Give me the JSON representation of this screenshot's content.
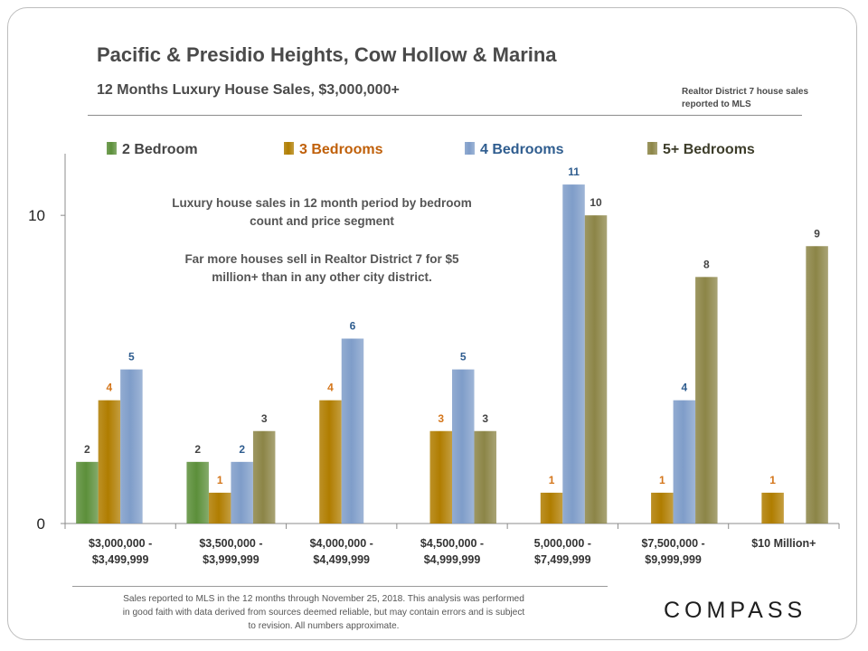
{
  "header": {
    "title": "Pacific & Presidio Heights, Cow Hollow & Marina",
    "subtitle": "12 Months  Luxury House Sales, $3,000,000+",
    "source_note": "Realtor District 7 house sales reported to MLS"
  },
  "annotation": {
    "line1": "Luxury house sales in 12 month period by bedroom",
    "line2": "count and price segment",
    "line3": "Far more houses sell in Realtor District 7 for $5",
    "line4": "million+ than in any other city district."
  },
  "footer": {
    "line1": "Sales reported to MLS in the 12 months through November 25, 2018. This analysis was performed",
    "line2": "in good faith with data derived from sources deemed reliable, but may contain errors and is subject",
    "line3": "to revision. All numbers approximate."
  },
  "logo": "COMPASS",
  "chart_data": {
    "type": "bar",
    "title": "Pacific & Presidio Heights, Cow Hollow & Marina",
    "xlabel": "",
    "ylabel": "",
    "ylim": [
      0,
      12
    ],
    "yticks": [
      "0",
      "10"
    ],
    "grid": false,
    "legend_position": "top",
    "categories": [
      [
        "$3,000,000 -",
        "$3,499,999"
      ],
      [
        "$3,500,000 -",
        "$3,999,999"
      ],
      [
        "$4,000,000 -",
        "$4,499,999"
      ],
      [
        "$4,500,000 -",
        "$4,999,999"
      ],
      [
        "5,000,000 -",
        "$7,499,999"
      ],
      [
        "$7,500,000 -",
        "$9,999,999"
      ],
      [
        "$10 Million+"
      ]
    ],
    "series": [
      {
        "name": "2 Bedroom",
        "color": "#5c8f3a",
        "label_color": "#444444",
        "values": [
          2,
          2,
          0,
          0,
          0,
          0,
          0
        ]
      },
      {
        "name": "3 Bedrooms",
        "color": "#b07d00",
        "label_color": "#d4761b",
        "values": [
          4,
          1,
          4,
          3,
          1,
          1,
          1
        ]
      },
      {
        "name": "4 Bedrooms",
        "color": "#7f9dc9",
        "label_color": "#2f5d8f",
        "values": [
          5,
          2,
          6,
          5,
          11,
          4,
          0
        ]
      },
      {
        "name": "5+ Bedrooms",
        "color": "#8c8547",
        "label_color": "#444444",
        "values": [
          0,
          3,
          0,
          3,
          10,
          8,
          9
        ]
      }
    ],
    "legend_text_colors": [
      "#444444",
      "#c0600a",
      "#2f5d8f",
      "#3d3d2a"
    ]
  }
}
